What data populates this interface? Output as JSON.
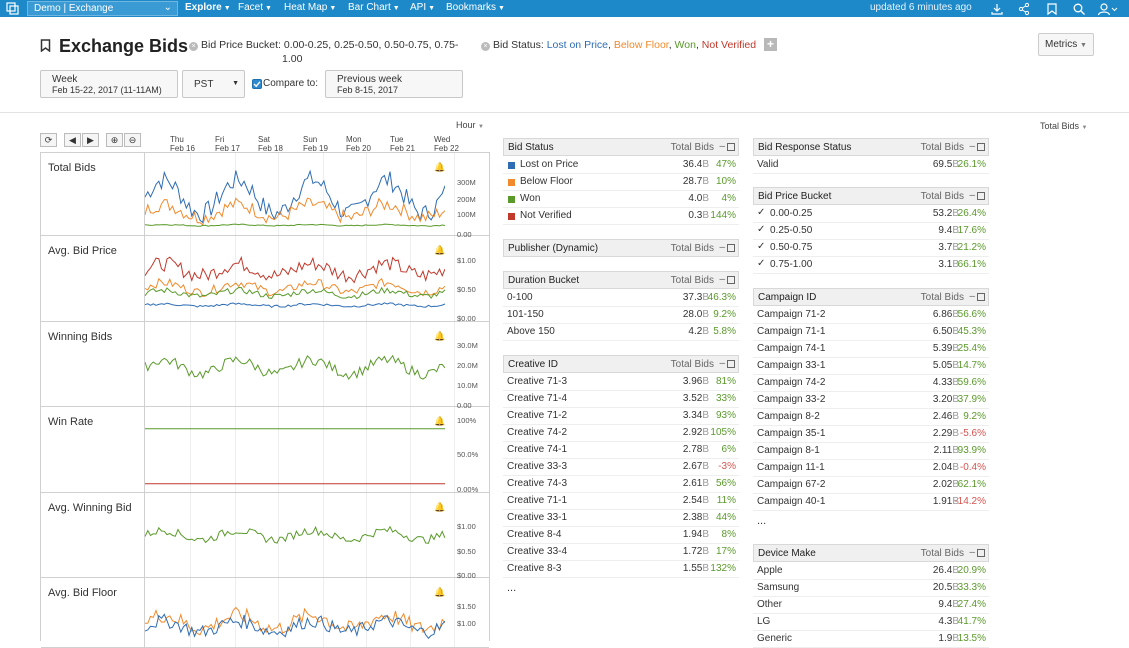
{
  "topbar": {
    "dataset": "Demo | Exchange",
    "nav": [
      {
        "label": "Explore",
        "active": true
      },
      {
        "label": "Facet",
        "active": false
      },
      {
        "label": "Heat Map",
        "active": false
      },
      {
        "label": "Bar Chart",
        "active": false
      },
      {
        "label": "API",
        "active": false
      },
      {
        "label": "Bookmarks",
        "active": false
      }
    ],
    "updated": "updated 6 minutes ago"
  },
  "header": {
    "title": "Exchange Bids",
    "bid_price_filter_label": "Bid Price Bucket:",
    "bid_price_filter_values": "0.00-0.25, 0.25-0.50, 0.50-0.75, 0.75-",
    "bid_price_filter_values_2": "1.00",
    "bid_status_filter_label": "Bid Status:",
    "bid_status_values": [
      {
        "text": "Lost on Price",
        "color": "#2e6db4"
      },
      {
        "text": "Below Floor",
        "color": "#f08a2c"
      },
      {
        "text": "Won",
        "color": "#5a9a2a"
      },
      {
        "text": "Not Verified",
        "color": "#c0392b"
      }
    ],
    "add_filter": "+",
    "metrics_button": "Metrics"
  },
  "timebar": {
    "range_label": "Week",
    "range_value": "Feb 15-22, 2017 (11-11AM)",
    "timezone": "PST",
    "compare_label": "Compare to:",
    "compare_checked": true,
    "compare_range_label": "Previous week",
    "compare_range_value": "Feb 8-15, 2017"
  },
  "chart_controls": {
    "granularity": "Hour",
    "sort_metric": "Total Bids",
    "days": [
      {
        "dow": "Thu",
        "date": "Feb 16"
      },
      {
        "dow": "Fri",
        "date": "Feb 17"
      },
      {
        "dow": "Sat",
        "date": "Feb 18"
      },
      {
        "dow": "Sun",
        "date": "Feb 19"
      },
      {
        "dow": "Mon",
        "date": "Feb 20"
      },
      {
        "dow": "Tue",
        "date": "Feb 21"
      },
      {
        "dow": "Wed",
        "date": "Feb 22"
      }
    ]
  },
  "chart_panels": [
    {
      "title": "Total Bids",
      "yticks": [
        "300M",
        "200M",
        "100M",
        "0.00"
      ]
    },
    {
      "title": "Avg. Bid Price",
      "yticks": [
        "$1.00",
        "$0.50",
        "$0.00"
      ]
    },
    {
      "title": "Winning Bids",
      "yticks": [
        "30.0M",
        "20.0M",
        "10.0M",
        "0.00"
      ]
    },
    {
      "title": "Win Rate",
      "yticks": [
        "100%",
        "50.0%",
        "0.00%"
      ]
    },
    {
      "title": "Avg. Winning Bid",
      "yticks": [
        "$1.00",
        "$0.50",
        "$0.00"
      ]
    },
    {
      "title": "Avg. Bid Floor",
      "yticks": [
        "$1.50",
        "$1.00"
      ]
    }
  ],
  "series_colors": {
    "lost": "#2e6db4",
    "below": "#f08a2c",
    "won": "#5a9a2a",
    "notverified": "#c0392b"
  },
  "tables": {
    "bid_status": {
      "title": "Bid Status",
      "metric": "Total Bids",
      "rows": [
        {
          "label": "Lost on Price",
          "value": "36.4",
          "unit": "B",
          "pct": "47%",
          "sign": "pos",
          "swatch": "#2e6db4"
        },
        {
          "label": "Below Floor",
          "value": "28.7",
          "unit": "B",
          "pct": "10%",
          "sign": "pos",
          "swatch": "#f08a2c"
        },
        {
          "label": "Won",
          "value": "4.0",
          "unit": "B",
          "pct": "4%",
          "sign": "pos",
          "swatch": "#5a9a2a"
        },
        {
          "label": "Not Verified",
          "value": "0.3",
          "unit": "B",
          "pct": "144%",
          "sign": "pos",
          "swatch": "#c0392b"
        }
      ]
    },
    "publisher": {
      "title": "Publisher (Dynamic)",
      "metric": "Total Bids",
      "rows": []
    },
    "duration": {
      "title": "Duration Bucket",
      "metric": "Total Bids",
      "rows": [
        {
          "label": "0-100",
          "value": "37.3",
          "unit": "B",
          "pct": "46.3%",
          "sign": "pos"
        },
        {
          "label": "101-150",
          "value": "28.0",
          "unit": "B",
          "pct": "9.2%",
          "sign": "pos"
        },
        {
          "label": "Above 150",
          "value": "4.2",
          "unit": "B",
          "pct": "5.8%",
          "sign": "pos"
        }
      ]
    },
    "creative": {
      "title": "Creative ID",
      "metric": "Total Bids",
      "rows": [
        {
          "label": "Creative 71-3",
          "value": "3.96",
          "unit": "B",
          "pct": "81%",
          "sign": "pos"
        },
        {
          "label": "Creative 71-4",
          "value": "3.52",
          "unit": "B",
          "pct": "33%",
          "sign": "pos"
        },
        {
          "label": "Creative 71-2",
          "value": "3.34",
          "unit": "B",
          "pct": "93%",
          "sign": "pos"
        },
        {
          "label": "Creative 74-2",
          "value": "2.92",
          "unit": "B",
          "pct": "105%",
          "sign": "pos"
        },
        {
          "label": "Creative 74-1",
          "value": "2.78",
          "unit": "B",
          "pct": "6%",
          "sign": "pos"
        },
        {
          "label": "Creative 33-3",
          "value": "2.67",
          "unit": "B",
          "pct": "-3%",
          "sign": "neg"
        },
        {
          "label": "Creative 74-3",
          "value": "2.61",
          "unit": "B",
          "pct": "56%",
          "sign": "pos"
        },
        {
          "label": "Creative 71-1",
          "value": "2.54",
          "unit": "B",
          "pct": "11%",
          "sign": "pos"
        },
        {
          "label": "Creative 33-1",
          "value": "2.38",
          "unit": "B",
          "pct": "44%",
          "sign": "pos"
        },
        {
          "label": "Creative 8-4",
          "value": "1.94",
          "unit": "B",
          "pct": "8%",
          "sign": "pos"
        },
        {
          "label": "Creative 33-4",
          "value": "1.72",
          "unit": "B",
          "pct": "17%",
          "sign": "pos"
        },
        {
          "label": "Creative 8-3",
          "value": "1.55",
          "unit": "B",
          "pct": "132%",
          "sign": "pos"
        }
      ],
      "more": "..."
    },
    "response": {
      "title": "Bid Response Status",
      "metric": "Total Bids",
      "rows": [
        {
          "label": "Valid",
          "value": "69.5",
          "unit": "B",
          "pct": "26.1%",
          "sign": "pos"
        }
      ]
    },
    "price_bucket": {
      "title": "Bid Price Bucket",
      "metric": "Total Bids",
      "rows": [
        {
          "label": "0.00-0.25",
          "value": "53.2",
          "unit": "B",
          "pct": "26.4%",
          "sign": "pos",
          "checked": true
        },
        {
          "label": "0.25-0.50",
          "value": "9.4",
          "unit": "B",
          "pct": "17.6%",
          "sign": "pos",
          "checked": true
        },
        {
          "label": "0.50-0.75",
          "value": "3.7",
          "unit": "B",
          "pct": "21.2%",
          "sign": "pos",
          "checked": true
        },
        {
          "label": "0.75-1.00",
          "value": "3.1",
          "unit": "B",
          "pct": "66.1%",
          "sign": "pos",
          "checked": true
        }
      ]
    },
    "campaign": {
      "title": "Campaign ID",
      "metric": "Total Bids",
      "rows": [
        {
          "label": "Campaign 71-2",
          "value": "6.86",
          "unit": "B",
          "pct": "56.6%",
          "sign": "pos"
        },
        {
          "label": "Campaign 71-1",
          "value": "6.50",
          "unit": "B",
          "pct": "45.3%",
          "sign": "pos"
        },
        {
          "label": "Campaign 74-1",
          "value": "5.39",
          "unit": "B",
          "pct": "25.4%",
          "sign": "pos"
        },
        {
          "label": "Campaign 33-1",
          "value": "5.05",
          "unit": "B",
          "pct": "14.7%",
          "sign": "pos"
        },
        {
          "label": "Campaign 74-2",
          "value": "4.33",
          "unit": "B",
          "pct": "59.6%",
          "sign": "pos"
        },
        {
          "label": "Campaign 33-2",
          "value": "3.20",
          "unit": "B",
          "pct": "37.9%",
          "sign": "pos"
        },
        {
          "label": "Campaign 8-2",
          "value": "2.46",
          "unit": "B",
          "pct": "9.2%",
          "sign": "pos"
        },
        {
          "label": "Campaign 35-1",
          "value": "2.29",
          "unit": "B",
          "pct": "-5.6%",
          "sign": "neg"
        },
        {
          "label": "Campaign 8-1",
          "value": "2.11",
          "unit": "B",
          "pct": "93.9%",
          "sign": "pos"
        },
        {
          "label": "Campaign 11-1",
          "value": "2.04",
          "unit": "B",
          "pct": "-0.4%",
          "sign": "neg"
        },
        {
          "label": "Campaign 67-2",
          "value": "2.02",
          "unit": "B",
          "pct": "62.1%",
          "sign": "pos"
        },
        {
          "label": "Campaign 40-1",
          "value": "1.91",
          "unit": "B",
          "pct": "-14.2%",
          "sign": "neg"
        }
      ],
      "more": "..."
    },
    "device": {
      "title": "Device Make",
      "metric": "Total Bids",
      "rows": [
        {
          "label": "Apple",
          "value": "26.4",
          "unit": "B",
          "pct": "20.9%",
          "sign": "pos"
        },
        {
          "label": "Samsung",
          "value": "20.5",
          "unit": "B",
          "pct": "33.3%",
          "sign": "pos"
        },
        {
          "label": "Other",
          "value": "9.4",
          "unit": "B",
          "pct": "27.4%",
          "sign": "pos"
        },
        {
          "label": "LG",
          "value": "4.3",
          "unit": "B",
          "pct": "41.7%",
          "sign": "pos"
        },
        {
          "label": "Generic",
          "value": "1.9",
          "unit": "B",
          "pct": "13.5%",
          "sign": "pos"
        }
      ]
    }
  }
}
